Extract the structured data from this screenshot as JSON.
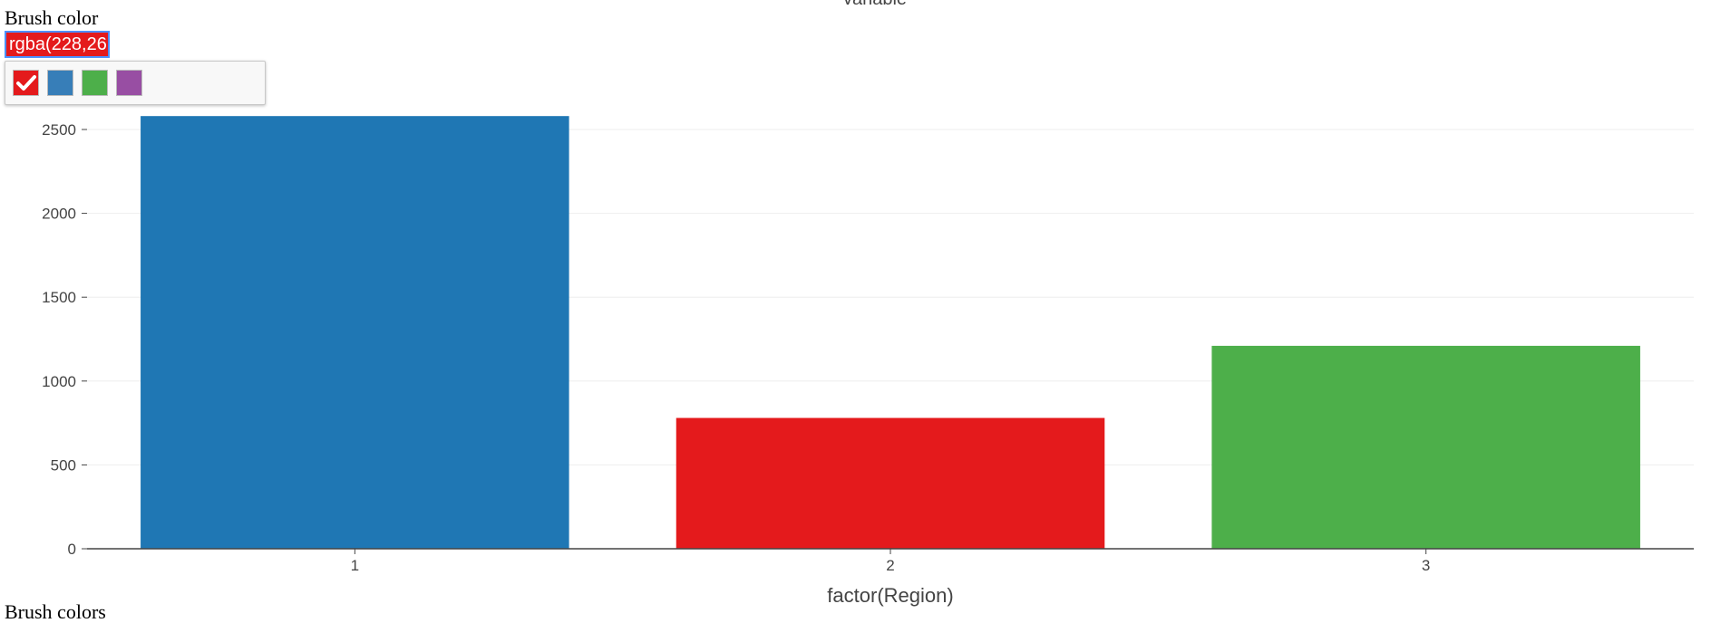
{
  "brush": {
    "label": "Brush color",
    "input_value": "rgba(228,26,",
    "swatches": [
      {
        "color": "#e41a1c",
        "selected": true,
        "icon": "checkmark-icon"
      },
      {
        "color": "#377eb8",
        "selected": false
      },
      {
        "color": "#4daf4a",
        "selected": false
      },
      {
        "color": "#984ea3",
        "selected": false
      }
    ]
  },
  "bottom_label": "Brush colors",
  "chart_data": {
    "type": "bar",
    "title": "variable",
    "categories": [
      "1",
      "2",
      "3"
    ],
    "values": [
      2580,
      780,
      1210
    ],
    "colors": [
      "#1f77b4",
      "#e41a1c",
      "#4daf4a"
    ],
    "xlabel": "factor(Region)",
    "ylabel": "",
    "ylim": [
      0,
      2600
    ],
    "yticks": [
      0,
      500,
      1000,
      1500,
      2000,
      2500
    ],
    "grid": true
  }
}
